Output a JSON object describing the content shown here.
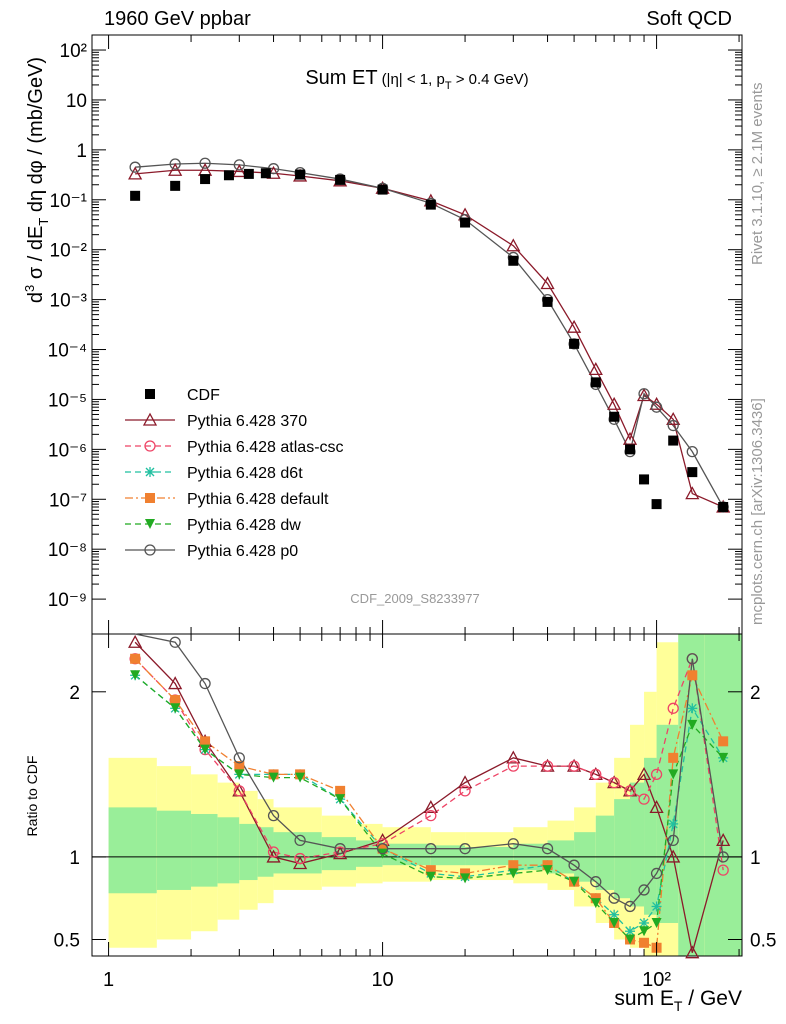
{
  "header": {
    "left": "1960 GeV ppbar",
    "right": "Soft QCD"
  },
  "side_text": {
    "rivet": "Rivet 3.1.10, ≥ 2.1M events",
    "mcplots": "mcplots.cern.ch [arXiv:1306.3436]"
  },
  "chart_data": [
    {
      "type": "line",
      "panel": "main",
      "title_main": "Sum ET",
      "title_cut_pre": "(|η| < 1, p",
      "title_cut_sub": "T",
      "title_cut_post": " > 0.4 GeV)",
      "analysis_id": "CDF_2009_S8233977",
      "ylabel": "d³σ / dE_T dη dφ / (mb/GeV)",
      "xscale": "log",
      "yscale": "log",
      "xlim": [
        0.87,
        205
      ],
      "ylim": [
        2e-10,
        200
      ],
      "x_ticks": [
        "1",
        "10",
        "10²"
      ],
      "y_ticks": [
        "10⁻⁹",
        "10⁻⁸",
        "10⁻⁷",
        "10⁻⁶",
        "10⁻⁵",
        "10⁻⁴",
        "10⁻³",
        "10⁻²",
        "10⁻¹",
        "1",
        "10",
        "10²"
      ],
      "legend": {
        "position": "bottom-left",
        "entries": [
          {
            "label": "CDF",
            "color": "#000000",
            "marker": "square",
            "dash": "none"
          },
          {
            "label": "Pythia 6.428 370",
            "color": "#8b1a2a",
            "marker": "triangle-open",
            "dash": "solid"
          },
          {
            "label": "Pythia 6.428 atlas-csc",
            "color": "#ee4466",
            "marker": "circle-open",
            "dash": "dashed"
          },
          {
            "label": "Pythia 6.428 d6t",
            "color": "#20c0a0",
            "marker": "star",
            "dash": "dashed"
          },
          {
            "label": "Pythia 6.428 default",
            "color": "#f08030",
            "marker": "square",
            "dash": "dashdot"
          },
          {
            "label": "Pythia 6.428 dw",
            "color": "#22aa22",
            "marker": "triangle-down",
            "dash": "dashed"
          },
          {
            "label": "Pythia 6.428 p0",
            "color": "#555555",
            "marker": "circle-open",
            "dash": "solid"
          }
        ]
      },
      "data_points": {
        "name": "CDF",
        "x": [
          1.25,
          1.75,
          2.25,
          2.75,
          3.25,
          3.75,
          5,
          7,
          10,
          15,
          20,
          30,
          40,
          50,
          60,
          70,
          80,
          90,
          100,
          115,
          135,
          175
        ],
        "y": [
          0.12,
          0.19,
          0.26,
          0.31,
          0.33,
          0.34,
          0.32,
          0.25,
          0.16,
          0.08,
          0.035,
          0.006,
          0.0009,
          0.00013,
          2.2e-05,
          4.5e-06,
          1e-06,
          2.5e-07,
          8e-08,
          1.5e-06,
          3.5e-07,
          7e-08
        ]
      },
      "curves": [
        {
          "name": "Pythia 6.428 370",
          "x": [
            1.25,
            1.75,
            2.25,
            3,
            4,
            5,
            7,
            10,
            15,
            20,
            30,
            40,
            50,
            60,
            70,
            80,
            90,
            100,
            115,
            135,
            175
          ],
          "y": [
            0.33,
            0.39,
            0.39,
            0.37,
            0.34,
            0.3,
            0.24,
            0.17,
            0.095,
            0.05,
            0.012,
            0.0021,
            0.00028,
            4e-05,
            8e-06,
            1.6e-06,
            1.2e-05,
            8e-06,
            4e-06,
            1.3e-07,
            7e-08
          ]
        },
        {
          "name": "Pythia 6.428 p0",
          "x": [
            1.25,
            1.75,
            2.25,
            3,
            4,
            5,
            7,
            10,
            15,
            20,
            30,
            40,
            50,
            60,
            70,
            80,
            90,
            100,
            115,
            135,
            175
          ],
          "y": [
            0.45,
            0.52,
            0.54,
            0.5,
            0.42,
            0.35,
            0.26,
            0.17,
            0.085,
            0.04,
            0.007,
            0.001,
            0.00013,
            2e-05,
            4e-06,
            9e-07,
            1.3e-05,
            7e-06,
            3e-06,
            9e-07,
            7e-08
          ]
        }
      ]
    },
    {
      "type": "line",
      "panel": "ratio",
      "ylabel": "Ratio to CDF",
      "xlabel": "sum E_T / GeV",
      "xscale": "log",
      "xlim": [
        0.87,
        205
      ],
      "ylim": [
        0.4,
        2.35
      ],
      "y_ticks": [
        "0.5",
        "1",
        "2"
      ],
      "reference": 1,
      "series": [
        {
          "name": "Pythia 6.428 370",
          "x": [
            1.25,
            1.75,
            2.25,
            3,
            4,
            5,
            7,
            10,
            15,
            20,
            30,
            40,
            50,
            60,
            70,
            80,
            90,
            100,
            115,
            135,
            175
          ],
          "y": [
            2.3,
            2.05,
            1.7,
            1.4,
            1.0,
            0.96,
            1.02,
            1.1,
            1.3,
            1.45,
            1.6,
            1.55,
            1.55,
            1.5,
            1.45,
            1.4,
            1.5,
            1.3,
            1.0,
            0.42,
            1.1
          ]
        },
        {
          "name": "Pythia 6.428 atlas-csc",
          "x": [
            1.25,
            1.75,
            2.25,
            3,
            4,
            5,
            7,
            10,
            15,
            20,
            30,
            40,
            50,
            60,
            70,
            80,
            90,
            100,
            115,
            135,
            175
          ],
          "y": [
            2.2,
            1.95,
            1.65,
            1.4,
            1.03,
            0.99,
            1.03,
            1.08,
            1.25,
            1.4,
            1.55,
            1.55,
            1.55,
            1.5,
            1.45,
            1.4,
            1.35,
            1.5,
            1.9,
            2.2,
            0.92
          ]
        },
        {
          "name": "Pythia 6.428 d6t",
          "x": [
            1.25,
            1.75,
            2.25,
            3,
            4,
            5,
            7,
            10,
            15,
            20,
            30,
            40,
            50,
            60,
            70,
            80,
            90,
            100,
            115,
            135,
            175
          ],
          "y": [
            2.1,
            1.9,
            1.65,
            1.5,
            1.5,
            1.5,
            1.35,
            1.05,
            0.9,
            0.88,
            0.92,
            0.95,
            0.85,
            0.75,
            0.65,
            0.55,
            0.6,
            0.7,
            1.2,
            1.9,
            1.6
          ]
        },
        {
          "name": "Pythia 6.428 default",
          "x": [
            1.25,
            1.75,
            2.25,
            3,
            4,
            5,
            7,
            10,
            15,
            20,
            30,
            40,
            50,
            60,
            70,
            80,
            90,
            100,
            115,
            135,
            175
          ],
          "y": [
            2.2,
            1.95,
            1.7,
            1.55,
            1.5,
            1.5,
            1.4,
            1.05,
            0.92,
            0.9,
            0.95,
            0.95,
            0.85,
            0.75,
            0.6,
            0.5,
            0.48,
            0.45,
            1.6,
            2.1,
            1.7
          ]
        },
        {
          "name": "Pythia 6.428 dw",
          "x": [
            1.25,
            1.75,
            2.25,
            3,
            4,
            5,
            7,
            10,
            15,
            20,
            30,
            40,
            50,
            60,
            70,
            80,
            90,
            100,
            115,
            135,
            175
          ],
          "y": [
            2.1,
            1.9,
            1.65,
            1.5,
            1.48,
            1.48,
            1.35,
            1.02,
            0.88,
            0.87,
            0.9,
            0.92,
            0.85,
            0.72,
            0.6,
            0.5,
            0.55,
            0.6,
            1.5,
            1.8,
            1.6
          ]
        },
        {
          "name": "Pythia 6.428 p0",
          "x": [
            1.25,
            1.75,
            2.25,
            3,
            4,
            5,
            7,
            10,
            15,
            20,
            30,
            40,
            50,
            60,
            70,
            80,
            90,
            100,
            115,
            135,
            175
          ],
          "y": [
            2.6,
            2.3,
            2.05,
            1.6,
            1.25,
            1.1,
            1.05,
            1.05,
            1.05,
            1.05,
            1.08,
            1.05,
            0.95,
            0.85,
            0.75,
            0.7,
            0.8,
            0.9,
            1.1,
            2.2,
            1.0
          ]
        }
      ],
      "bands": {
        "x_edges": [
          1,
          1.5,
          2,
          2.5,
          3,
          3.5,
          4,
          6,
          8,
          10,
          15,
          20,
          30,
          40,
          50,
          60,
          70,
          80,
          90,
          100,
          120,
          150,
          205
        ],
        "green_lo": [
          0.78,
          0.8,
          0.82,
          0.84,
          0.86,
          0.88,
          0.9,
          0.92,
          0.94,
          0.95,
          0.95,
          0.95,
          0.92,
          0.9,
          0.85,
          0.8,
          0.75,
          0.7,
          0.65,
          0.6,
          0.3,
          0.3
        ],
        "green_hi": [
          1.3,
          1.28,
          1.26,
          1.24,
          1.2,
          1.18,
          1.15,
          1.12,
          1.1,
          1.08,
          1.07,
          1.06,
          1.08,
          1.1,
          1.15,
          1.25,
          1.35,
          1.45,
          1.6,
          1.8,
          2.4,
          2.4
        ],
        "yellow_lo": [
          0.45,
          0.5,
          0.55,
          0.62,
          0.68,
          0.72,
          0.8,
          0.82,
          0.84,
          0.85,
          0.86,
          0.86,
          0.84,
          0.8,
          0.7,
          0.6,
          0.5,
          0.45,
          0.4,
          0.35,
          0.3,
          0.3
        ],
        "yellow_hi": [
          1.6,
          1.55,
          1.5,
          1.45,
          1.4,
          1.35,
          1.3,
          1.25,
          1.2,
          1.18,
          1.15,
          1.15,
          1.18,
          1.22,
          1.3,
          1.45,
          1.6,
          1.8,
          2.0,
          2.3,
          2.4,
          2.4
        ]
      }
    }
  ]
}
